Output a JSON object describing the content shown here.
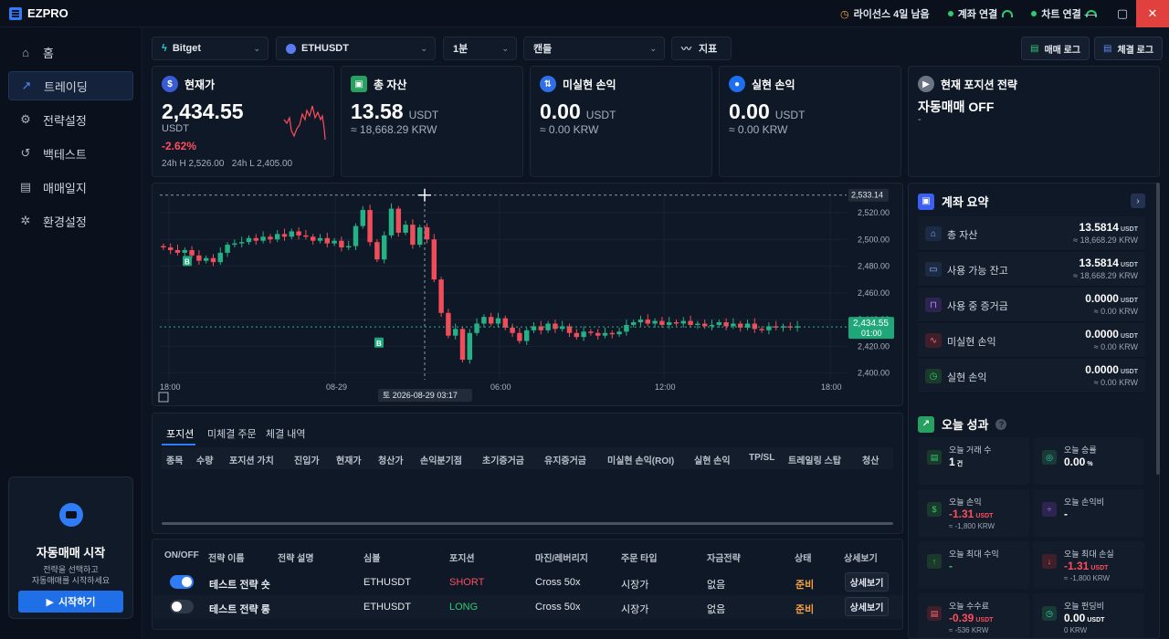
{
  "app": {
    "title": "EZPRO"
  },
  "titlebar": {
    "license": "라이선스 4일 남음",
    "account_conn": "계좌 연결",
    "chart_conn": "차트 연결"
  },
  "sidebar": {
    "items": [
      {
        "label": "홈",
        "icon": "home-icon"
      },
      {
        "label": "트레이딩",
        "icon": "trending-icon"
      },
      {
        "label": "전략설정",
        "icon": "sliders-icon"
      },
      {
        "label": "백테스트",
        "icon": "backtest-icon"
      },
      {
        "label": "매매일지",
        "icon": "journal-icon"
      },
      {
        "label": "환경설정",
        "icon": "gear-icon"
      }
    ],
    "auto": {
      "title": "자동매매 시작",
      "sub1": "전략을 선택하고",
      "sub2": "자동매매를 시작하세요",
      "button": "시작하기"
    }
  },
  "toolbar": {
    "exchange": "Bitget",
    "symbol": "ETHUSDT",
    "interval": "1분",
    "chart_type": "캔들",
    "indicator": "지표",
    "trade_log": "매매 로그",
    "fill_log": "체결 로그"
  },
  "cards": {
    "price": {
      "title": "현재가",
      "value": "2,434.55",
      "unit": "USDT",
      "change": "-2.62%",
      "high": "24h H 2,526.00",
      "low": "24h L 2,405.00"
    },
    "total": {
      "title": "총 자산",
      "value": "13.58",
      "unit": "USDT",
      "krw": "≈ 18,668.29 KRW"
    },
    "unrealized": {
      "title": "미실현 손익",
      "value": "0.00",
      "unit": "USDT",
      "krw": "≈ 0.00 KRW"
    },
    "realized": {
      "title": "실현 손익",
      "value": "0.00",
      "unit": "USDT",
      "krw": "≈ 0.00 KRW"
    },
    "strategy": {
      "title": "현재 포지션 전략",
      "value": "자동매매 OFF",
      "sub": "-"
    }
  },
  "chart_data": {
    "type": "candlestick",
    "y_ticks": [
      "2,520.00",
      "2,500.00",
      "2,480.00",
      "2,460.00",
      "2,440.00",
      "2,420.00",
      "2,400.00"
    ],
    "x_ticks": [
      "18:00",
      "08-29",
      "06:00",
      "12:00",
      "18:00"
    ],
    "crosshair_price": "2,533.14",
    "last_price": "2,434.55",
    "last_time": "01:00",
    "crosshair_time": "토 2026-08-29 03:17",
    "buy_marker": "B",
    "ylim": [
      2395,
      2535
    ],
    "close": [
      2494,
      2492,
      2490,
      2492,
      2488,
      2484,
      2486,
      2483,
      2490,
      2496,
      2497,
      2498,
      2501,
      2499,
      2502,
      2500,
      2504,
      2502,
      2506,
      2503,
      2502,
      2499,
      2501,
      2497,
      2499,
      2494,
      2495,
      2510,
      2522,
      2498,
      2485,
      2503,
      2523,
      2505,
      2511,
      2496,
      2509,
      2500,
      2470,
      2445,
      2428,
      2433,
      2410,
      2430,
      2437,
      2442,
      2437,
      2441,
      2434,
      2430,
      2424,
      2432,
      2435,
      2432,
      2437,
      2433,
      2435,
      2430,
      2427,
      2431,
      2430,
      2428,
      2430,
      2429,
      2431,
      2436,
      2438,
      2440,
      2437,
      2439,
      2436,
      2438,
      2437,
      2439,
      2436,
      2437,
      2435,
      2436,
      2438,
      2435,
      2437,
      2434,
      2437,
      2433,
      2432,
      2435,
      2434,
      2435,
      2434,
      2435
    ]
  },
  "positions": {
    "tabs": [
      "포지션",
      "미체결 주문",
      "체결 내역"
    ],
    "columns": [
      "종목",
      "수량",
      "포지션 가치",
      "진입가",
      "현재가",
      "청산가",
      "손익분기점",
      "초기증거금",
      "유지증거금",
      "미실현 손익(ROI)",
      "실현 손익",
      "TP/SL",
      "트레일링 스탑",
      "청산"
    ]
  },
  "strategies": {
    "columns": [
      "ON/OFF",
      "전략 이름",
      "전략 설명",
      "심볼",
      "포지션",
      "마진/레버리지",
      "주문 타입",
      "자금전략",
      "상태",
      "상세보기"
    ],
    "rows": [
      {
        "on": true,
        "name": "테스트 전략 숏",
        "desc": "",
        "symbol": "ETHUSDT",
        "position": "SHORT",
        "margin": "Cross 50x",
        "order_type": "시장가",
        "fund": "없음",
        "status": "준비",
        "detail": "상세보기"
      },
      {
        "on": false,
        "name": "테스트 전략 롱",
        "desc": "",
        "symbol": "ETHUSDT",
        "position": "LONG",
        "margin": "Cross 50x",
        "order_type": "시장가",
        "fund": "없음",
        "status": "준비",
        "detail": "상세보기"
      }
    ]
  },
  "account": {
    "title": "계좌 요약",
    "rows": [
      {
        "label": "총 자산",
        "value": "13.5814",
        "unit": "USDT",
        "krw": "≈ 18,668.29 KRW",
        "icon": "bank-icon"
      },
      {
        "label": "사용 가능 잔고",
        "value": "13.5814",
        "unit": "USDT",
        "krw": "≈ 18,668.29 KRW",
        "icon": "card-icon"
      },
      {
        "label": "사용 중 증거금",
        "value": "0.0000",
        "unit": "USDT",
        "krw": "≈ 0.00 KRW",
        "icon": "lock-icon"
      },
      {
        "label": "미실현 손익",
        "value": "0.0000",
        "unit": "USDT",
        "krw": "≈ 0.00 KRW",
        "icon": "pulse-icon"
      },
      {
        "label": "실현 손익",
        "value": "0.0000",
        "unit": "USDT",
        "krw": "≈ 0.00 KRW",
        "icon": "clock-icon"
      }
    ]
  },
  "performance": {
    "title": "오늘 성과",
    "items": [
      {
        "label": "오늘 거래 수",
        "value": "1",
        "unit": "건",
        "sub": "",
        "color": "#ffffff"
      },
      {
        "label": "오늘 승률",
        "value": "0.00",
        "unit": "%",
        "sub": "",
        "color": "#ffffff"
      },
      {
        "label": "오늘 손익",
        "value": "-1.31",
        "unit": "USDT",
        "sub": "≈ -1,800 KRW",
        "color": "#ff4d5e"
      },
      {
        "label": "오늘 손익비",
        "value": "-",
        "unit": "",
        "sub": "",
        "color": "#ffffff"
      },
      {
        "label": "오늘 최대 수익",
        "value": "-",
        "unit": "",
        "sub": "",
        "color": "#2ecc71"
      },
      {
        "label": "오늘 최대 손실",
        "value": "-1.31",
        "unit": "USDT",
        "sub": "≈ -1,800 KRW",
        "color": "#ff4d5e"
      },
      {
        "label": "오늘 수수료",
        "value": "-0.39",
        "unit": "USDT",
        "sub": "≈ -536 KRW",
        "color": "#ff4d5e"
      },
      {
        "label": "오늘 펀딩비",
        "value": "0.00",
        "unit": "USDT",
        "sub": "0 KRW",
        "color": "#ffffff"
      }
    ]
  }
}
